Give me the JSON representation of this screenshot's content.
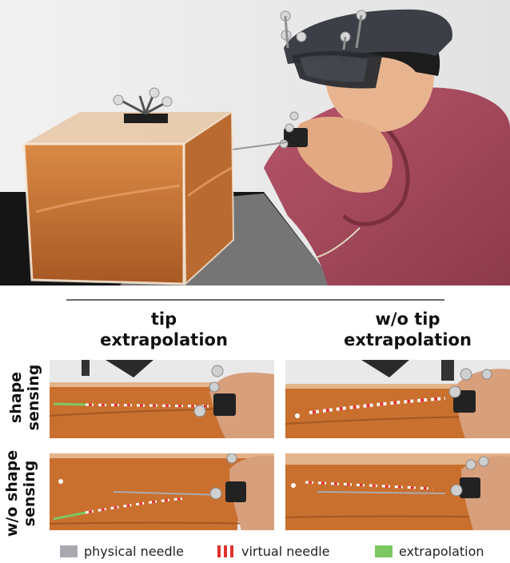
{
  "columns": {
    "col1_line1": "tip",
    "col1_line2": "extrapolation",
    "col2_line1": "w/o tip",
    "col2_line2": "extrapolation"
  },
  "rows": {
    "row1_line1": "shape",
    "row1_line2": "sensing",
    "row2_line1": "w/o shape",
    "row2_line2": "sensing"
  },
  "legend": {
    "physical_label": "physical needle",
    "virtual_label": "virtual needle",
    "extrapolation_label": "extrapolation",
    "physical_color": "#a9aab0",
    "virtual_color": "#e0322d",
    "extrapolation_color": "#7cc862"
  },
  "colors": {
    "gel": "#c9702f",
    "gel_dark": "#9a4f1c",
    "hoodie": "#a94a5e",
    "headset": "#3c3f46"
  }
}
